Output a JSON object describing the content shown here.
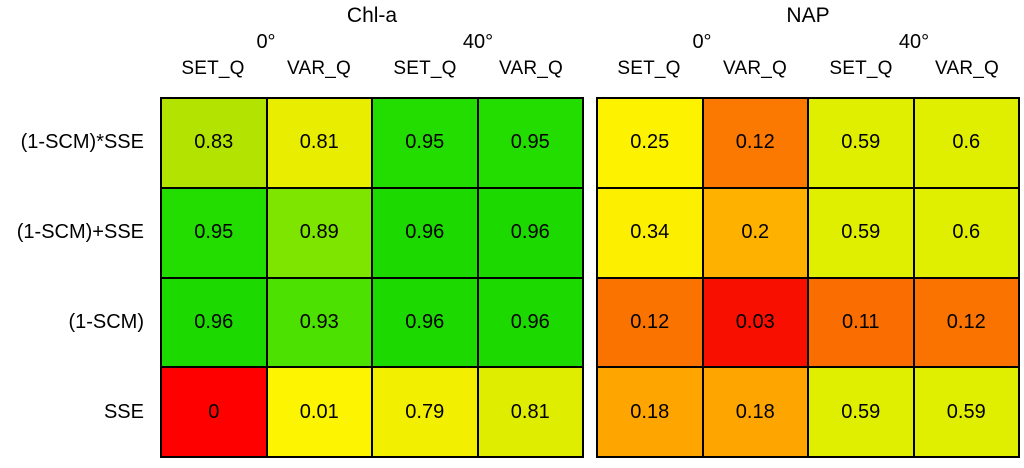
{
  "row_labels": [
    "(1-SCM)*SSE",
    "(1-SCM)+SSE",
    "(1-SCM)",
    "SSE"
  ],
  "panels": [
    {
      "title": "Chl-a",
      "angles": [
        "0°",
        "40°"
      ],
      "columns": [
        "SET_Q",
        "VAR_Q",
        "SET_Q",
        "VAR_Q"
      ],
      "cells": [
        [
          {
            "value": "0.83",
            "color": "#b3e300"
          },
          {
            "value": "0.81",
            "color": "#e9ee00"
          },
          {
            "value": "0.95",
            "color": "#23dc00"
          },
          {
            "value": "0.95",
            "color": "#23dc00"
          }
        ],
        [
          {
            "value": "0.95",
            "color": "#23dc00"
          },
          {
            "value": "0.89",
            "color": "#7de500"
          },
          {
            "value": "0.96",
            "color": "#1cda00"
          },
          {
            "value": "0.96",
            "color": "#1cda00"
          }
        ],
        [
          {
            "value": "0.96",
            "color": "#1cda00"
          },
          {
            "value": "0.93",
            "color": "#4ce100"
          },
          {
            "value": "0.96",
            "color": "#1cda00"
          },
          {
            "value": "0.96",
            "color": "#1cda00"
          }
        ],
        [
          {
            "value": "0",
            "color": "#ff0000"
          },
          {
            "value": "0.01",
            "color": "#fcf400"
          },
          {
            "value": "0.79",
            "color": "#f3ef00"
          },
          {
            "value": "0.81",
            "color": "#dfee00"
          }
        ]
      ]
    },
    {
      "title": "NAP",
      "angles": [
        "0°",
        "40°"
      ],
      "columns": [
        "SET_Q",
        "VAR_Q",
        "SET_Q",
        "VAR_Q"
      ],
      "cells": [
        [
          {
            "value": "0.25",
            "color": "#fdf200"
          },
          {
            "value": "0.12",
            "color": "#fb7900"
          },
          {
            "value": "0.59",
            "color": "#e0ee00"
          },
          {
            "value": "0.6",
            "color": "#e0ee00"
          }
        ],
        [
          {
            "value": "0.34",
            "color": "#fcf000"
          },
          {
            "value": "0.2",
            "color": "#ffb100"
          },
          {
            "value": "0.59",
            "color": "#e0ee00"
          },
          {
            "value": "0.6",
            "color": "#e0ee00"
          }
        ],
        [
          {
            "value": "0.12",
            "color": "#fa7300"
          },
          {
            "value": "0.03",
            "color": "#f90f00"
          },
          {
            "value": "0.11",
            "color": "#fa6d00"
          },
          {
            "value": "0.12",
            "color": "#fa7300"
          }
        ],
        [
          {
            "value": "0.18",
            "color": "#fea500"
          },
          {
            "value": "0.18",
            "color": "#fea500"
          },
          {
            "value": "0.59",
            "color": "#e0ee00"
          },
          {
            "value": "0.59",
            "color": "#e0ee00"
          }
        ]
      ]
    }
  ],
  "chart_data": [
    {
      "type": "heatmap",
      "title": "Chl-a",
      "column_groups": [
        {
          "label": "0°",
          "span": 2
        },
        {
          "label": "40°",
          "span": 2
        }
      ],
      "columns": [
        "SET_Q",
        "VAR_Q",
        "SET_Q",
        "VAR_Q"
      ],
      "rows": [
        "(1-SCM)*SSE",
        "(1-SCM)+SSE",
        "(1-SCM)",
        "SSE"
      ],
      "values": [
        [
          0.83,
          0.81,
          0.95,
          0.95
        ],
        [
          0.95,
          0.89,
          0.96,
          0.96
        ],
        [
          0.96,
          0.93,
          0.96,
          0.96
        ],
        [
          0,
          0.01,
          0.79,
          0.81
        ]
      ],
      "colormap": "red-yellow-green",
      "value_range": [
        0,
        1
      ],
      "legend": "none",
      "grid": "black cell borders"
    },
    {
      "type": "heatmap",
      "title": "NAP",
      "column_groups": [
        {
          "label": "0°",
          "span": 2
        },
        {
          "label": "40°",
          "span": 2
        }
      ],
      "columns": [
        "SET_Q",
        "VAR_Q",
        "SET_Q",
        "VAR_Q"
      ],
      "rows": [
        "(1-SCM)*SSE",
        "(1-SCM)+SSE",
        "(1-SCM)",
        "SSE"
      ],
      "values": [
        [
          0.25,
          0.12,
          0.59,
          0.6
        ],
        [
          0.34,
          0.2,
          0.59,
          0.6
        ],
        [
          0.12,
          0.03,
          0.11,
          0.12
        ],
        [
          0.18,
          0.18,
          0.59,
          0.59
        ]
      ],
      "colormap": "red-yellow-green",
      "value_range": [
        0,
        1
      ],
      "legend": "none",
      "grid": "black cell borders"
    }
  ]
}
